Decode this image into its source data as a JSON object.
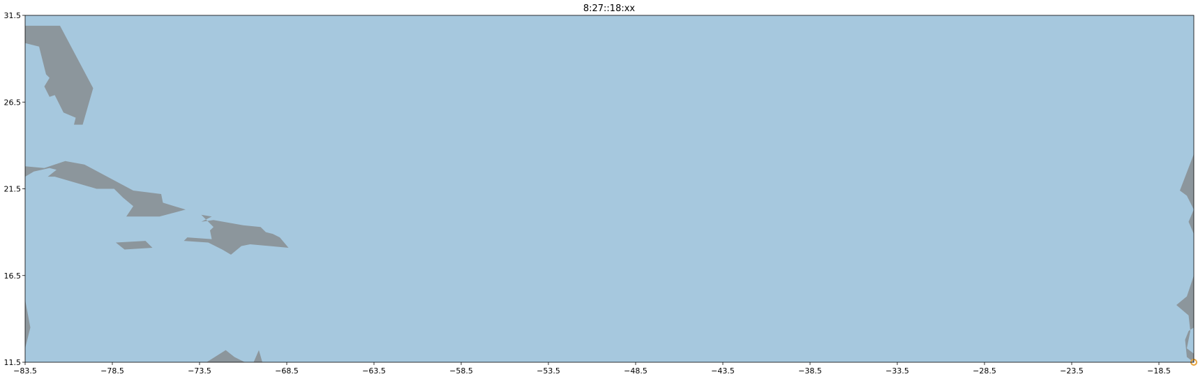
{
  "chart_data": {
    "type": "map",
    "title": "8:27::18:xx",
    "xlabel": "",
    "ylabel": "",
    "xlim": [
      -83.5,
      -16.5
    ],
    "ylim": [
      11.5,
      31.5
    ],
    "x_ticks": [
      "−83.5",
      "−78.5",
      "−73.5",
      "−68.5",
      "−63.5",
      "−58.5",
      "−53.5",
      "−48.5",
      "−43.5",
      "−38.5",
      "−33.5",
      "−28.5",
      "−23.5",
      "−18.5"
    ],
    "x_tick_values": [
      -83.5,
      -78.5,
      -73.5,
      -68.5,
      -63.5,
      -58.5,
      -53.5,
      -48.5,
      -43.5,
      -38.5,
      -33.5,
      -28.5,
      -23.5,
      -18.5
    ],
    "y_ticks": [
      "31.5",
      "26.5",
      "21.5",
      "16.5",
      "11.5"
    ],
    "y_tick_values": [
      31.5,
      26.5,
      21.5,
      16.5,
      11.5
    ],
    "grid": false,
    "colors": {
      "ocean": "#a6c8de",
      "land": "#8c969c",
      "marker": "#e8a33c"
    },
    "land": [
      {
        "name": "florida",
        "points": [
          [
            -83.5,
            30.9
          ],
          [
            -81.5,
            30.9
          ],
          [
            -79.6,
            27.3
          ],
          [
            -80.2,
            25.2
          ],
          [
            -80.7,
            25.2
          ],
          [
            -80.6,
            25.6
          ],
          [
            -81.3,
            25.9
          ],
          [
            -81.8,
            26.9
          ],
          [
            -82.1,
            26.8
          ],
          [
            -82.4,
            27.4
          ],
          [
            -82.1,
            27.9
          ],
          [
            -82.3,
            28.1
          ],
          [
            -82.6,
            29.3
          ],
          [
            -82.7,
            29.7
          ],
          [
            -83.5,
            29.9
          ]
        ]
      },
      {
        "name": "cuba",
        "points": [
          [
            -83.5,
            22.8
          ],
          [
            -82.4,
            22.7
          ],
          [
            -81.2,
            23.1
          ],
          [
            -80.1,
            22.9
          ],
          [
            -77.3,
            21.4
          ],
          [
            -75.7,
            21.2
          ],
          [
            -75.6,
            20.7
          ],
          [
            -74.3,
            20.3
          ],
          [
            -75.8,
            19.9
          ],
          [
            -77.7,
            19.9
          ],
          [
            -77.3,
            20.5
          ],
          [
            -77.9,
            21.0
          ],
          [
            -78.4,
            21.5
          ],
          [
            -79.4,
            21.5
          ],
          [
            -81.8,
            22.2
          ],
          [
            -82.2,
            22.2
          ],
          [
            -81.7,
            22.6
          ],
          [
            -82.1,
            22.7
          ],
          [
            -83.0,
            22.5
          ],
          [
            -83.5,
            22.2
          ]
        ]
      },
      {
        "name": "jamaica",
        "points": [
          [
            -78.3,
            18.4
          ],
          [
            -76.6,
            18.5
          ],
          [
            -76.2,
            18.1
          ],
          [
            -77.8,
            18.0
          ]
        ]
      },
      {
        "name": "hispaniola",
        "points": [
          [
            -74.4,
            18.5
          ],
          [
            -73.0,
            18.4
          ],
          [
            -72.2,
            18.0
          ],
          [
            -71.7,
            17.7
          ],
          [
            -71.1,
            18.2
          ],
          [
            -70.6,
            18.3
          ],
          [
            -68.4,
            18.1
          ],
          [
            -68.9,
            18.7
          ],
          [
            -69.3,
            18.9
          ],
          [
            -69.7,
            19.0
          ],
          [
            -70.0,
            19.3
          ],
          [
            -71.0,
            19.4
          ],
          [
            -72.7,
            19.7
          ],
          [
            -73.4,
            19.6
          ],
          [
            -72.8,
            19.9
          ],
          [
            -73.4,
            20.0
          ],
          [
            -72.7,
            19.3
          ],
          [
            -72.9,
            19.1
          ],
          [
            -72.8,
            18.6
          ],
          [
            -74.2,
            18.7
          ]
        ]
      },
      {
        "name": "south-america",
        "points": [
          [
            -83.5,
            12.3
          ],
          [
            -83.2,
            13.5
          ],
          [
            -83.5,
            15.1
          ]
        ]
      },
      {
        "name": "colombia-coast",
        "points": [
          [
            -73.1,
            11.5
          ],
          [
            -72.0,
            12.2
          ],
          [
            -71.5,
            11.8
          ],
          [
            -70.9,
            11.5
          ]
        ]
      },
      {
        "name": "paraguana",
        "points": [
          [
            -70.4,
            11.5
          ],
          [
            -70.1,
            12.2
          ],
          [
            -69.9,
            11.5
          ]
        ]
      },
      {
        "name": "west-africa",
        "points": [
          [
            -16.5,
            23.5
          ],
          [
            -17.3,
            21.4
          ],
          [
            -16.9,
            21.1
          ],
          [
            -16.5,
            20.3
          ],
          [
            -16.8,
            19.6
          ],
          [
            -16.5,
            18.9
          ],
          [
            -16.5,
            16.5
          ],
          [
            -16.6,
            16.2
          ],
          [
            -16.9,
            15.3
          ],
          [
            -17.5,
            14.8
          ],
          [
            -16.8,
            14.2
          ],
          [
            -16.7,
            13.3
          ],
          [
            -16.9,
            12.3
          ],
          [
            -16.5,
            12.0
          ],
          [
            -16.5,
            11.5
          ],
          [
            -16.9,
            11.8
          ],
          [
            -17.0,
            12.8
          ],
          [
            -16.8,
            13.3
          ],
          [
            -16.5,
            13.5
          ]
        ]
      }
    ],
    "markers": [
      {
        "name": "data-point",
        "lon": -16.5,
        "lat": 11.5
      }
    ]
  }
}
